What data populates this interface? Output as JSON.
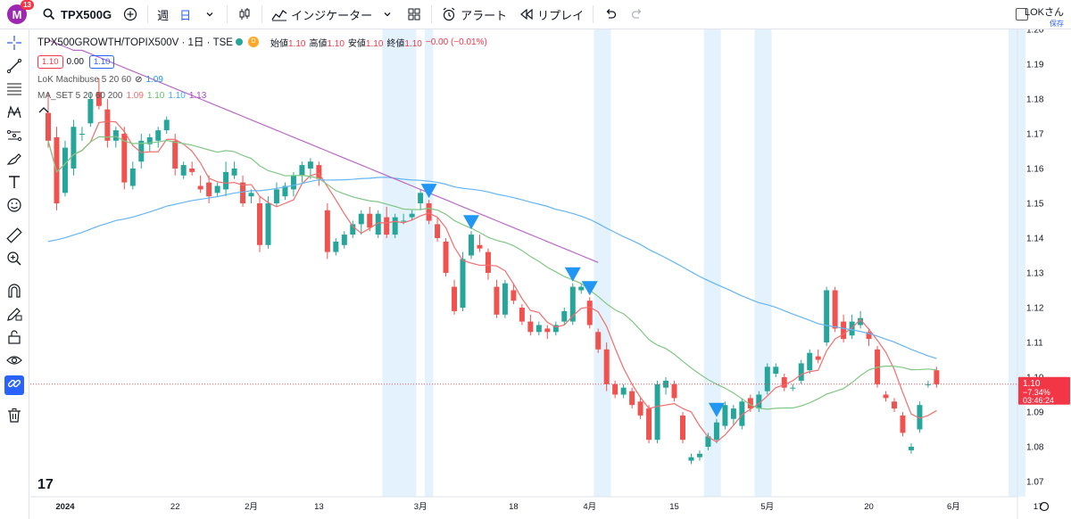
{
  "toolbar": {
    "avatar_letter": "M",
    "notification_count": "13",
    "symbol": "TPX500G",
    "interval_week": "週",
    "interval_day": "日",
    "indicators_label": "インジケーター",
    "alert_label": "アラート",
    "replay_label": "リプレイ",
    "user_name": "LOKさん",
    "save_label": "保存"
  },
  "legend": {
    "title": "TPX500GROWTH/TOPIX500V · 1日 · TSE",
    "open_label": "始値",
    "open": "1.10",
    "high_label": "高値",
    "high": "1.10",
    "low_label": "安値",
    "low": "1.10",
    "close_label": "終値",
    "close": "1.10",
    "change": "−0.00 (−0.01%)",
    "bid": "1.10",
    "spread": "0.00",
    "ask": "1.10",
    "ind1_name": "LoK Machibuse 5 20 60",
    "ind1_value": "1.09",
    "ind2_name": "MA_SET 5 20 60 200",
    "ind2_v1": "1.09",
    "ind2_v2": "1.10",
    "ind2_v3": "1.10",
    "ind2_v4": "1.13",
    "d_label": "D"
  },
  "price_label": {
    "price": "1.10",
    "change": "−7.34%",
    "time": "03:46:24"
  },
  "colors": {
    "up": "#26a69a",
    "down": "#ef5350",
    "ma5": "#f26d6d",
    "ma20": "#81c784",
    "ma60": "#64b5f6",
    "ma200": "#ba68c8",
    "signal": "#2196f3",
    "highlight": "#e3f2fd"
  },
  "chart_data": {
    "type": "candlestick",
    "y_ticks": [
      "1.20",
      "1.19",
      "1.18",
      "1.17",
      "1.16",
      "1.15",
      "1.14",
      "1.13",
      "1.12",
      "1.11",
      "1.10",
      "1.09",
      "1.08",
      "1.07"
    ],
    "ylim": [
      1.065,
      1.2
    ],
    "x_ticks": [
      {
        "label": "2024",
        "i": 2
      },
      {
        "label": "22",
        "i": 15
      },
      {
        "label": "2月",
        "i": 24
      },
      {
        "label": "13",
        "i": 32
      },
      {
        "label": "3月",
        "i": 44
      },
      {
        "label": "18",
        "i": 55
      },
      {
        "label": "4月",
        "i": 64
      },
      {
        "label": "15",
        "i": 74
      },
      {
        "label": "5月",
        "i": 85
      },
      {
        "label": "20",
        "i": 97
      },
      {
        "label": "6月",
        "i": 107
      },
      {
        "label": "17",
        "i": 117
      }
    ],
    "candles": [
      [
        1.176,
        1.182,
        1.166,
        1.168
      ],
      [
        1.169,
        1.172,
        1.148,
        1.15
      ],
      [
        1.153,
        1.168,
        1.152,
        1.166
      ],
      [
        1.16,
        1.174,
        1.158,
        1.172
      ],
      [
        1.17,
        1.172,
        1.168,
        1.17
      ],
      [
        1.173,
        1.182,
        1.172,
        1.18
      ],
      [
        1.182,
        1.186,
        1.177,
        1.178
      ],
      [
        1.177,
        1.18,
        1.166,
        1.168
      ],
      [
        1.168,
        1.172,
        1.166,
        1.171
      ],
      [
        1.17,
        1.172,
        1.154,
        1.156
      ],
      [
        1.155,
        1.162,
        1.154,
        1.16
      ],
      [
        1.162,
        1.17,
        1.16,
        1.168
      ],
      [
        1.167,
        1.17,
        1.165,
        1.169
      ],
      [
        1.168,
        1.172,
        1.166,
        1.171
      ],
      [
        1.171,
        1.175,
        1.17,
        1.174
      ],
      [
        1.168,
        1.17,
        1.158,
        1.16
      ],
      [
        1.158,
        1.162,
        1.157,
        1.161
      ],
      [
        1.16,
        1.162,
        1.158,
        1.159
      ],
      [
        1.155,
        1.158,
        1.153,
        1.154
      ],
      [
        1.156,
        1.158,
        1.15,
        1.152
      ],
      [
        1.153,
        1.156,
        1.152,
        1.155
      ],
      [
        1.154,
        1.162,
        1.152,
        1.159
      ],
      [
        1.158,
        1.162,
        1.157,
        1.16
      ],
      [
        1.156,
        1.158,
        1.149,
        1.15
      ],
      [
        1.152,
        1.154,
        1.15,
        1.153
      ],
      [
        1.15,
        1.152,
        1.136,
        1.138
      ],
      [
        1.138,
        1.152,
        1.137,
        1.15
      ],
      [
        1.15,
        1.156,
        1.149,
        1.154
      ],
      [
        1.152,
        1.156,
        1.151,
        1.155
      ],
      [
        1.154,
        1.159,
        1.152,
        1.158
      ],
      [
        1.158,
        1.162,
        1.156,
        1.161
      ],
      [
        1.16,
        1.163,
        1.157,
        1.162
      ],
      [
        1.161,
        1.162,
        1.155,
        1.157
      ],
      [
        1.148,
        1.15,
        1.134,
        1.136
      ],
      [
        1.136,
        1.14,
        1.135,
        1.139
      ],
      [
        1.138,
        1.142,
        1.137,
        1.141
      ],
      [
        1.141,
        1.145,
        1.14,
        1.144
      ],
      [
        1.144,
        1.148,
        1.141,
        1.147
      ],
      [
        1.147,
        1.149,
        1.142,
        1.143
      ],
      [
        1.141,
        1.148,
        1.14,
        1.147
      ],
      [
        1.146,
        1.149,
        1.14,
        1.141
      ],
      [
        1.141,
        1.147,
        1.14,
        1.146
      ],
      [
        1.145,
        1.147,
        1.144,
        1.145
      ],
      [
        1.146,
        1.148,
        1.145,
        1.147
      ],
      [
        1.15,
        1.154,
        1.148,
        1.153
      ],
      [
        1.15,
        1.151,
        1.144,
        1.145
      ],
      [
        1.144,
        1.146,
        1.139,
        1.14
      ],
      [
        1.139,
        1.14,
        1.129,
        1.13
      ],
      [
        1.126,
        1.128,
        1.118,
        1.119
      ],
      [
        1.12,
        1.136,
        1.119,
        1.134
      ],
      [
        1.135,
        1.142,
        1.134,
        1.141
      ],
      [
        1.138,
        1.141,
        1.136,
        1.137
      ],
      [
        1.136,
        1.137,
        1.128,
        1.13
      ],
      [
        1.126,
        1.128,
        1.117,
        1.118
      ],
      [
        1.118,
        1.128,
        1.117,
        1.127
      ],
      [
        1.125,
        1.127,
        1.121,
        1.122
      ],
      [
        1.12,
        1.121,
        1.115,
        1.116
      ],
      [
        1.116,
        1.118,
        1.112,
        1.113
      ],
      [
        1.113,
        1.116,
        1.112,
        1.115
      ],
      [
        1.114,
        1.115,
        1.111,
        1.113
      ],
      [
        1.113,
        1.116,
        1.112,
        1.115
      ],
      [
        1.116,
        1.12,
        1.115,
        1.119
      ],
      [
        1.116,
        1.127,
        1.115,
        1.126
      ],
      [
        1.125,
        1.127,
        1.124,
        1.126
      ],
      [
        1.122,
        1.123,
        1.114,
        1.115
      ],
      [
        1.113,
        1.114,
        1.107,
        1.108
      ],
      [
        1.108,
        1.11,
        1.096,
        1.098
      ],
      [
        1.098,
        1.099,
        1.094,
        1.095
      ],
      [
        1.095,
        1.098,
        1.094,
        1.097
      ],
      [
        1.096,
        1.097,
        1.091,
        1.092
      ],
      [
        1.093,
        1.094,
        1.088,
        1.089
      ],
      [
        1.091,
        1.092,
        1.081,
        1.082
      ],
      [
        1.082,
        1.099,
        1.081,
        1.098
      ],
      [
        1.097,
        1.1,
        1.095,
        1.099
      ],
      [
        1.098,
        1.099,
        1.093,
        1.094
      ],
      [
        1.089,
        1.09,
        1.081,
        1.082
      ],
      [
        1.076,
        1.078,
        1.075,
        1.077
      ],
      [
        1.077,
        1.079,
        1.076,
        1.078
      ],
      [
        1.08,
        1.084,
        1.079,
        1.083
      ],
      [
        1.082,
        1.088,
        1.081,
        1.087
      ],
      [
        1.086,
        1.093,
        1.085,
        1.092
      ],
      [
        1.088,
        1.092,
        1.086,
        1.091
      ],
      [
        1.086,
        1.094,
        1.085,
        1.093
      ],
      [
        1.094,
        1.095,
        1.09,
        1.091
      ],
      [
        1.091,
        1.096,
        1.09,
        1.095
      ],
      [
        1.096,
        1.104,
        1.095,
        1.103
      ],
      [
        1.101,
        1.104,
        1.1,
        1.103
      ],
      [
        1.1,
        1.101,
        1.096,
        1.097
      ],
      [
        1.097,
        1.098,
        1.096,
        1.097
      ],
      [
        1.099,
        1.105,
        1.098,
        1.104
      ],
      [
        1.102,
        1.108,
        1.101,
        1.107
      ],
      [
        1.106,
        1.108,
        1.104,
        1.105
      ],
      [
        1.11,
        1.126,
        1.109,
        1.125
      ],
      [
        1.125,
        1.126,
        1.113,
        1.114
      ],
      [
        1.116,
        1.118,
        1.11,
        1.111
      ],
      [
        1.112,
        1.118,
        1.111,
        1.116
      ],
      [
        1.115,
        1.119,
        1.114,
        1.117
      ],
      [
        1.113,
        1.114,
        1.109,
        1.111
      ],
      [
        1.108,
        1.109,
        1.097,
        1.098
      ],
      [
        1.095,
        1.096,
        1.093,
        1.094
      ],
      [
        1.093,
        1.094,
        1.09,
        1.091
      ],
      [
        1.089,
        1.09,
        1.083,
        1.084
      ],
      [
        1.079,
        1.081,
        1.078,
        1.08
      ],
      [
        1.085,
        1.093,
        1.084,
        1.092
      ],
      [
        1.098,
        1.099,
        1.097,
        1.098
      ],
      [
        1.102,
        1.103,
        1.097,
        1.098
      ]
    ],
    "ma200": [
      1.197,
      1.196,
      1.195,
      1.194,
      1.194,
      1.193,
      1.192,
      1.191,
      1.19,
      1.189,
      1.188,
      1.187,
      1.186,
      1.185,
      1.184,
      1.183,
      1.182,
      1.181,
      1.18,
      1.179,
      1.178,
      1.177,
      1.176,
      1.175,
      1.174,
      1.173,
      1.172,
      1.171,
      1.17,
      1.169,
      1.168,
      1.167,
      1.166,
      1.165,
      1.164,
      1.163,
      1.162,
      1.161,
      1.16,
      1.159,
      1.158,
      1.157,
      1.156,
      1.155,
      1.154,
      1.153,
      1.152,
      1.151,
      1.15,
      1.149,
      1.148,
      1.147,
      1.146,
      1.145,
      1.144,
      1.143,
      1.142,
      1.141,
      1.14,
      1.139,
      1.138,
      1.137,
      1.136,
      1.135,
      1.134,
      1.133
    ],
    "signals": [
      45,
      50,
      62,
      64,
      79
    ],
    "highlights": [
      [
        40,
        43
      ],
      [
        45,
        45
      ],
      [
        65,
        66
      ],
      [
        78,
        79
      ],
      [
        84,
        85
      ],
      [
        114,
        115
      ]
    ]
  }
}
